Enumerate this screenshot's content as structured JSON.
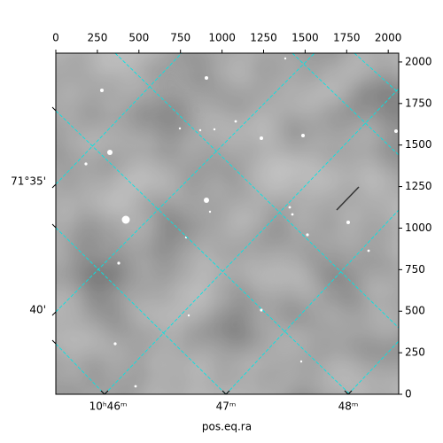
{
  "chart_data": {
    "type": "image",
    "xlabel": "pos.eq.ra",
    "xlim": [
      0,
      2063
    ],
    "ylim": [
      0,
      2053
    ],
    "xticks": [
      0,
      250,
      500,
      750,
      1000,
      1250,
      1500,
      1750,
      2000
    ],
    "yticks": [
      0,
      250,
      500,
      750,
      1000,
      1250,
      1500,
      1750,
      2000
    ],
    "ra_labels": [
      "10ʰ46ᵐ",
      "47ᵐ",
      "48ᵐ"
    ],
    "dec_labels": [
      "71°35'",
      "40'"
    ],
    "grid_color": "#00e5e5"
  }
}
